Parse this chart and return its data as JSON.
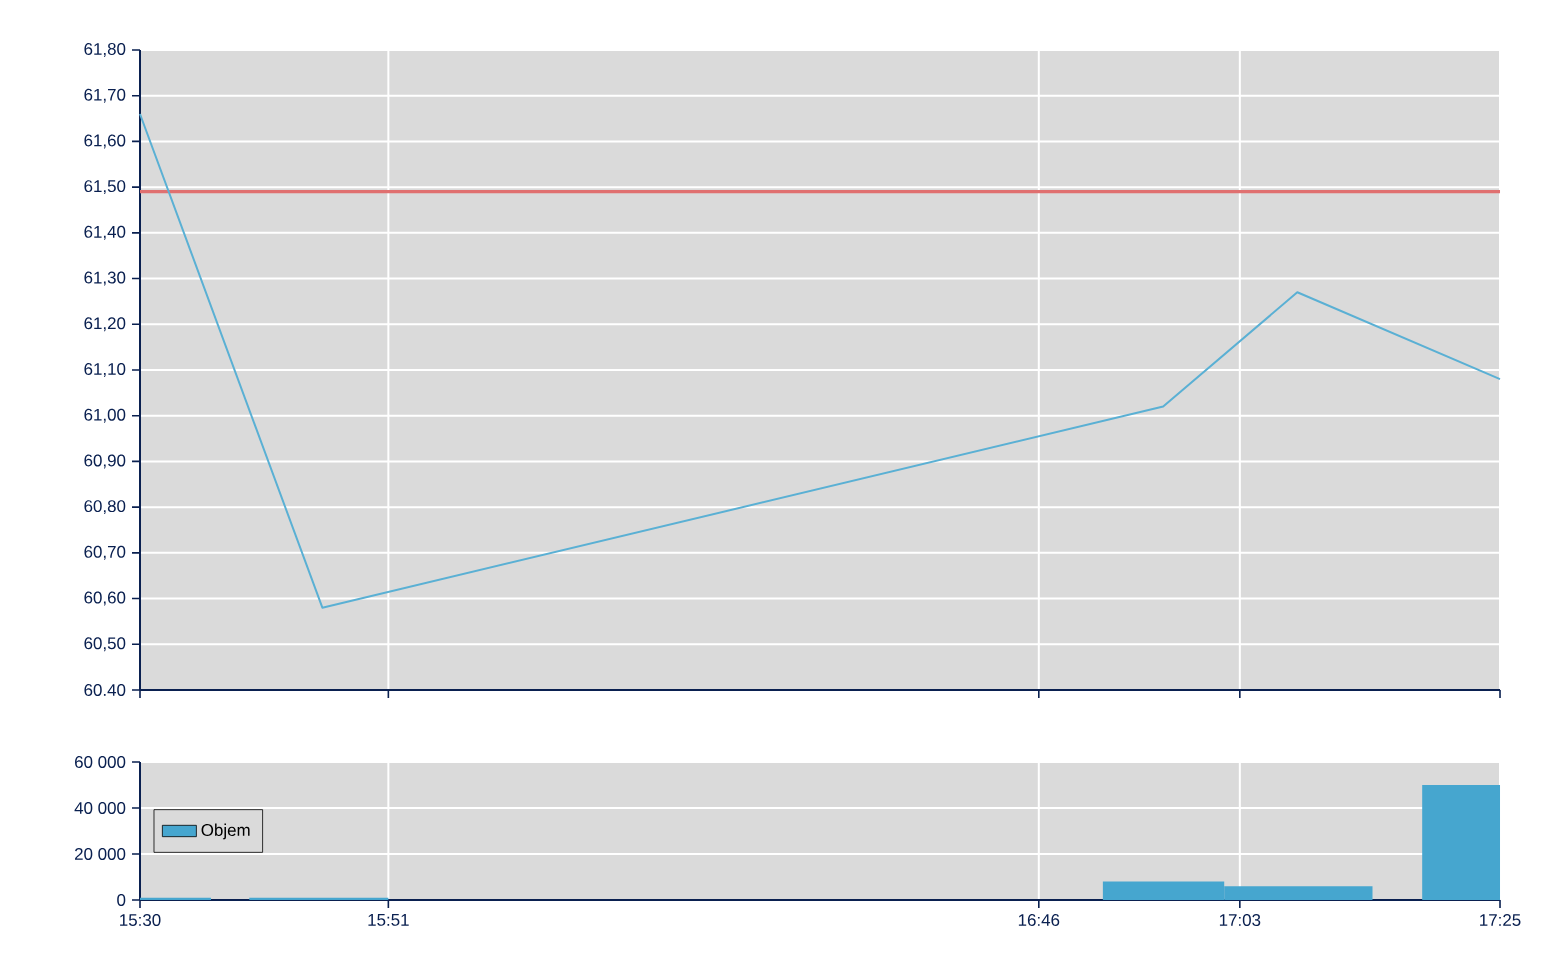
{
  "chart_data": [
    {
      "type": "line",
      "x": [
        15.5,
        15.757,
        16.942,
        17.131,
        17.4167
      ],
      "series": [
        {
          "color": "#5ab0d4",
          "values": [
            61.66,
            60.58,
            61.02,
            61.27,
            61.08
          ]
        }
      ],
      "xlim": [
        15.5,
        17.4167
      ],
      "ylim": [
        60.4,
        61.8
      ],
      "yticks": [
        {
          "value": 60.4,
          "label": "60.40"
        },
        {
          "value": 60.5,
          "label": "60,50"
        },
        {
          "value": 60.6,
          "label": "60,60"
        },
        {
          "value": 60.7,
          "label": "60,70"
        },
        {
          "value": 60.8,
          "label": "60,80"
        },
        {
          "value": 60.9,
          "label": "60,90"
        },
        {
          "value": 61.0,
          "label": "61,00"
        },
        {
          "value": 61.1,
          "label": "61,10"
        },
        {
          "value": 61.2,
          "label": "61,20"
        },
        {
          "value": 61.3,
          "label": "61,30"
        },
        {
          "value": 61.4,
          "label": "61,40"
        },
        {
          "value": 61.5,
          "label": "61,50"
        },
        {
          "value": 61.6,
          "label": "61,60"
        },
        {
          "value": 61.7,
          "label": "61,70"
        },
        {
          "value": 61.8,
          "label": "61,80"
        }
      ],
      "ref_lines": [
        {
          "axis": "y",
          "value": 61.49,
          "color": "#e07070"
        }
      ],
      "tick_labels": "y",
      "grid": true,
      "marker": "none",
      "line_style": "solid"
    },
    {
      "type": "histogram",
      "bins": [
        15.5,
        15.6,
        15.654,
        15.85,
        16.857,
        17.028,
        17.237,
        17.307,
        17.4167
      ],
      "series": [
        {
          "name": "Objem",
          "color": "#46a6cf",
          "values": [
            1000,
            0,
            1000,
            0,
            8000,
            6000,
            0,
            50000
          ]
        }
      ],
      "xlim": [
        15.5,
        17.4167
      ],
      "xticks": [
        {
          "value": 15.5,
          "label": "15:30"
        },
        {
          "value": 15.85,
          "label": "15:51"
        },
        {
          "value": 16.7667,
          "label": "16:46"
        },
        {
          "value": 17.05,
          "label": "17:03"
        },
        {
          "value": 17.4167,
          "label": "17:25"
        }
      ],
      "ylim": [
        0,
        60000
      ],
      "yticks": [
        0,
        {
          "value": 20000,
          "label": "20 000"
        },
        {
          "value": 40000,
          "label": "40 000"
        },
        {
          "value": 60000,
          "label": "60 000"
        }
      ],
      "grid": true,
      "legend": "left"
    }
  ]
}
